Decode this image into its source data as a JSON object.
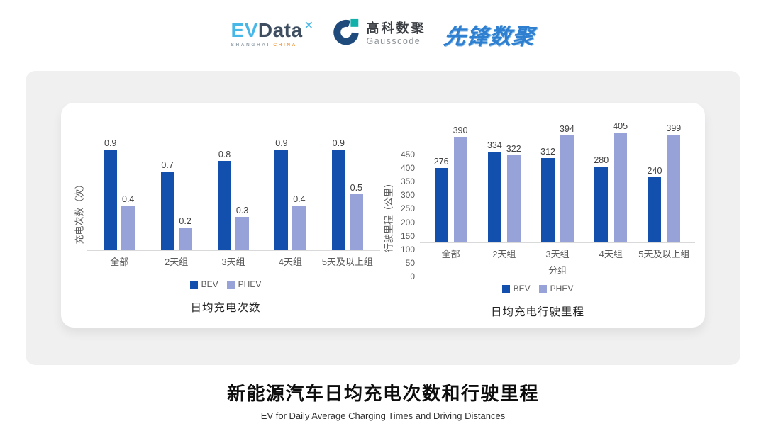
{
  "header": {
    "evdata_logo": {
      "ev": "EV",
      "data": "Data",
      "mark": "✕",
      "subtext_left": "SHANGHAI",
      "subtext_right": "CHINA"
    },
    "gausscode_logo": {
      "name_cn": "高科数聚",
      "name_en": "Gausscode"
    },
    "pioneer_logo": {
      "text": "先锋数聚"
    }
  },
  "chart_data": [
    {
      "type": "bar",
      "title": "日均充电次数",
      "ylabel": "充电次数（次）",
      "xlabel": "",
      "categories": [
        "全部",
        "2天组",
        "3天组",
        "4天组",
        "5天及以上组"
      ],
      "series": [
        {
          "name": "BEV",
          "color": "#1350AE",
          "values": [
            0.9,
            0.7,
            0.8,
            0.9,
            0.9
          ]
        },
        {
          "name": "PHEV",
          "color": "#97A3D8",
          "values": [
            0.4,
            0.2,
            0.3,
            0.4,
            0.5
          ]
        }
      ],
      "ylim": [
        0,
        1.0
      ],
      "y_ticks": [],
      "grid": false,
      "legend_position": "bottom",
      "data_labels": true
    },
    {
      "type": "bar",
      "title": "日均充电行驶里程",
      "ylabel": "行驶里程（公里）",
      "xlabel": "分组",
      "categories": [
        "全部",
        "2天组",
        "3天组",
        "4天组",
        "5天及以上组"
      ],
      "series": [
        {
          "name": "BEV",
          "color": "#1350AE",
          "values": [
            276,
            334,
            312,
            280,
            240
          ]
        },
        {
          "name": "PHEV",
          "color": "#97A3D8",
          "values": [
            390,
            322,
            394,
            405,
            399
          ]
        }
      ],
      "ylim": [
        0,
        450
      ],
      "y_ticks": [
        0,
        50,
        100,
        150,
        200,
        250,
        300,
        350,
        400,
        450
      ],
      "grid": false,
      "legend_position": "bottom",
      "data_labels": true
    }
  ],
  "footer": {
    "title": "新能源汽车日均充电次数和行驶里程",
    "subtitle": "EV for Daily Average Charging Times and Driving Distances"
  },
  "colors": {
    "bev": "#1350AE",
    "phev": "#97A3D8",
    "panel_bg": "#F0F0F1",
    "card_bg": "#FFFFFF"
  }
}
